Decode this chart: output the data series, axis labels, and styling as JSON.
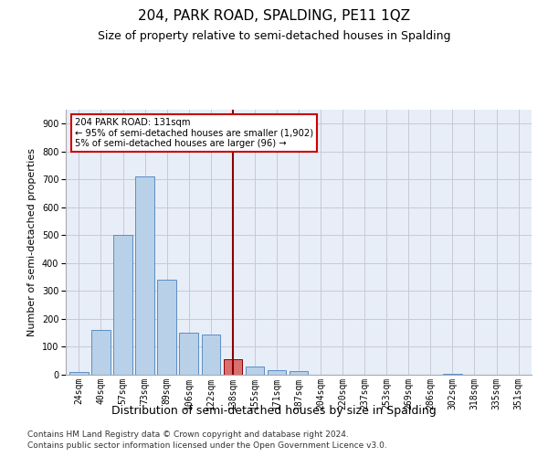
{
  "title": "204, PARK ROAD, SPALDING, PE11 1QZ",
  "subtitle": "Size of property relative to semi-detached houses in Spalding",
  "xlabel": "Distribution of semi-detached houses by size in Spalding",
  "ylabel": "Number of semi-detached properties",
  "footer_line1": "Contains HM Land Registry data © Crown copyright and database right 2024.",
  "footer_line2": "Contains public sector information licensed under the Open Government Licence v3.0.",
  "categories": [
    "24sqm",
    "40sqm",
    "57sqm",
    "73sqm",
    "89sqm",
    "106sqm",
    "122sqm",
    "138sqm",
    "155sqm",
    "171sqm",
    "187sqm",
    "204sqm",
    "220sqm",
    "237sqm",
    "253sqm",
    "269sqm",
    "286sqm",
    "302sqm",
    "318sqm",
    "335sqm",
    "351sqm"
  ],
  "values": [
    10,
    160,
    500,
    710,
    340,
    150,
    145,
    55,
    30,
    18,
    12,
    0,
    0,
    0,
    0,
    0,
    0,
    3,
    0,
    0,
    0
  ],
  "bar_color": "#b8d0e8",
  "bar_edge_color": "#5b8ec4",
  "highlight_index": 7,
  "highlight_bar_color": "#d97070",
  "highlight_bar_edge": "#8b0000",
  "vline_color": "#8b0000",
  "annotation_text": "204 PARK ROAD: 131sqm\n← 95% of semi-detached houses are smaller (1,902)\n5% of semi-detached houses are larger (96) →",
  "annotation_box_color": "#ffffff",
  "annotation_box_edge": "#cc0000",
  "ylim": [
    0,
    950
  ],
  "yticks": [
    0,
    100,
    200,
    300,
    400,
    500,
    600,
    700,
    800,
    900
  ],
  "grid_color": "#c8c8d8",
  "bg_color": "#e8eef8",
  "title_fontsize": 11,
  "subtitle_fontsize": 9,
  "xlabel_fontsize": 9,
  "ylabel_fontsize": 8,
  "tick_fontsize": 7,
  "footer_fontsize": 6.5
}
